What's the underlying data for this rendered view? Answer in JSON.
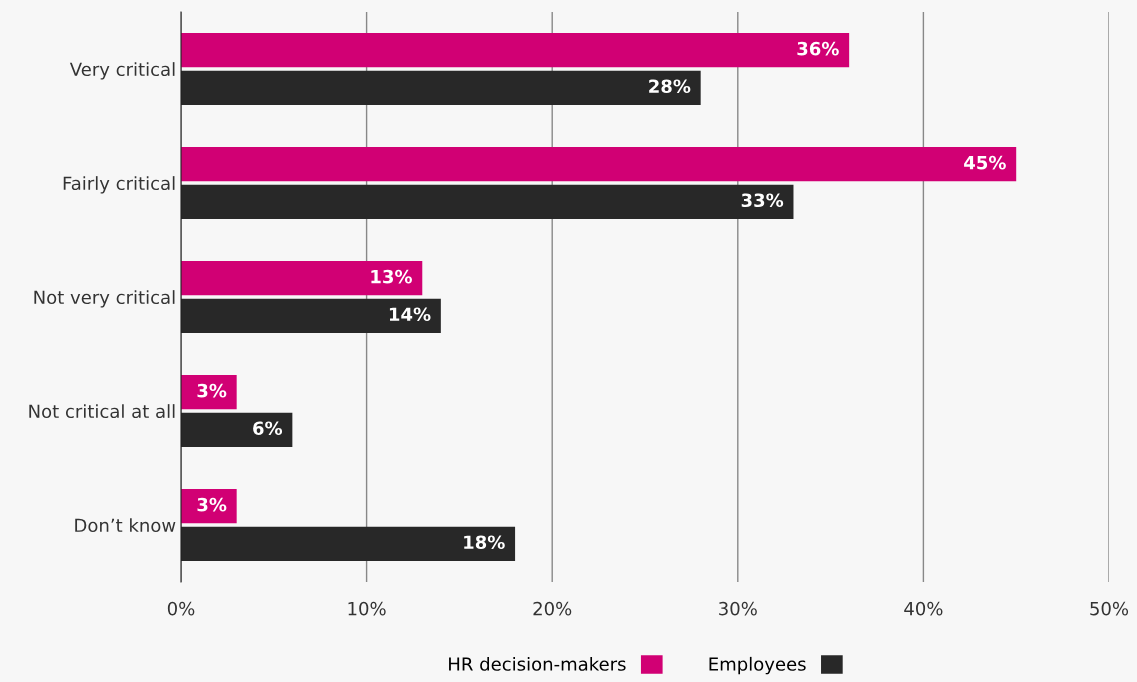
{
  "chart_data": {
    "type": "bar",
    "orientation": "horizontal",
    "categories": [
      "Very critical",
      "Fairly critical",
      "Not very critical",
      "Not critical at all",
      "Don’t know"
    ],
    "series": [
      {
        "name": "HR decision-makers",
        "color": "#d10074",
        "values": [
          36,
          45,
          13,
          3,
          3
        ]
      },
      {
        "name": "Employees",
        "color": "#282828",
        "values": [
          28,
          33,
          14,
          6,
          18
        ]
      }
    ],
    "xlim": [
      0,
      50
    ],
    "xticks": [
      {
        "value": 0,
        "label": "0%"
      },
      {
        "value": 10,
        "label": "10%"
      },
      {
        "value": 20,
        "label": "20%"
      },
      {
        "value": 30,
        "label": "30%"
      },
      {
        "value": 40,
        "label": "40%"
      },
      {
        "value": 50,
        "label": "50%"
      }
    ],
    "value_labels": [
      [
        "36%",
        "45%",
        "13%",
        "3%",
        "3%"
      ],
      [
        "28%",
        "33%",
        "14%",
        "6%",
        "18%"
      ]
    ],
    "grid": "x",
    "legend": "bottom"
  }
}
